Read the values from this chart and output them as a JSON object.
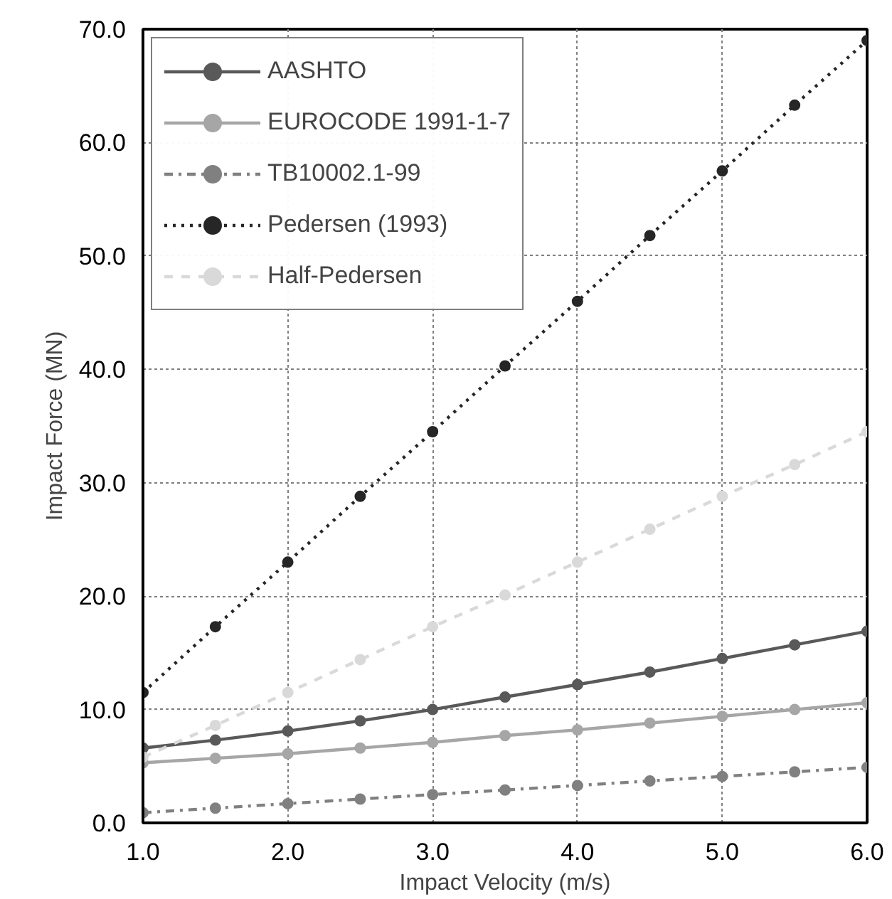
{
  "chart_data": {
    "type": "line",
    "xlabel": "Impact Velocity (m/s)",
    "ylabel": "Impact Force (MN)",
    "x": [
      1.0,
      1.5,
      2.0,
      2.5,
      3.0,
      3.5,
      4.0,
      4.5,
      5.0,
      5.5,
      6.0
    ],
    "xlim": [
      1,
      6
    ],
    "ylim": [
      0,
      70
    ],
    "xticks": [
      {
        "value": 1,
        "label": "1.0"
      },
      {
        "value": 2,
        "label": "2.0"
      },
      {
        "value": 3,
        "label": "3.0"
      },
      {
        "value": 4,
        "label": "4.0"
      },
      {
        "value": 5,
        "label": "5.0"
      },
      {
        "value": 6,
        "label": "6.0"
      }
    ],
    "yticks": [
      {
        "value": 0,
        "label": "0.0"
      },
      {
        "value": 10,
        "label": "10.0"
      },
      {
        "value": 20,
        "label": "20.0"
      },
      {
        "value": 30,
        "label": "30.0"
      },
      {
        "value": 40,
        "label": "40.0"
      },
      {
        "value": 50,
        "label": "50.0"
      },
      {
        "value": 60,
        "label": "60.0"
      },
      {
        "value": 70,
        "label": "70.0"
      }
    ],
    "grid": true,
    "legend": "top left",
    "marker": "circle",
    "series": [
      {
        "name": "AASHTO",
        "color": "#595959",
        "line_style": "solid",
        "values": [
          6.6,
          7.3,
          8.1,
          9.0,
          10.0,
          11.1,
          12.2,
          13.3,
          14.5,
          15.7,
          16.9
        ]
      },
      {
        "name": "EUROCODE 1991-1-7",
        "color": "#a6a6a6",
        "line_style": "solid",
        "values": [
          5.3,
          5.7,
          6.1,
          6.6,
          7.1,
          7.7,
          8.2,
          8.8,
          9.4,
          10.0,
          10.6
        ]
      },
      {
        "name": "TB10002.1-99",
        "color": "#808080",
        "line_style": "dashdot",
        "values": [
          0.9,
          1.3,
          1.7,
          2.1,
          2.5,
          2.9,
          3.3,
          3.7,
          4.1,
          4.5,
          4.9
        ]
      },
      {
        "name": "Pedersen (1993)",
        "color": "#262626",
        "line_style": "dotted",
        "values": [
          11.5,
          17.3,
          23.0,
          28.8,
          34.5,
          40.3,
          46.0,
          51.8,
          57.5,
          63.3,
          69.0
        ]
      },
      {
        "name": "Half-Pedersen",
        "color": "#d9d9d9",
        "line_style": "dashed",
        "values": [
          5.8,
          8.6,
          11.5,
          14.4,
          17.3,
          20.1,
          23.0,
          25.9,
          28.8,
          31.6,
          34.5
        ]
      }
    ]
  }
}
